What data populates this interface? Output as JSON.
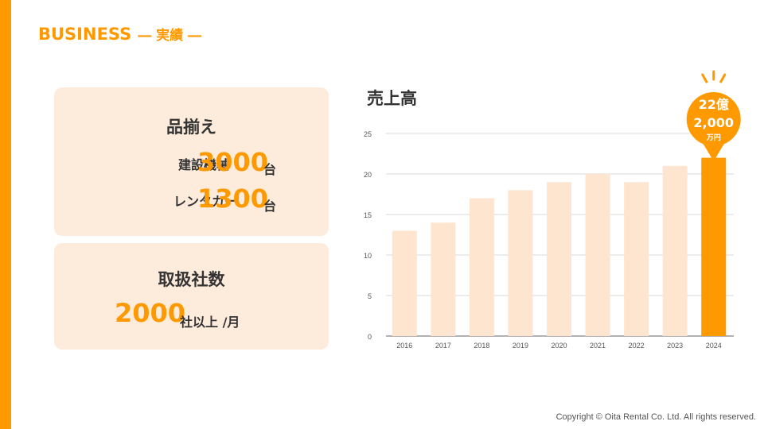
{
  "header": {
    "title": "BUSINESS",
    "subtitle": "― 実績 ―"
  },
  "lineup": {
    "title": "品揃え",
    "rows": [
      {
        "label": "建設機械",
        "value": "3000",
        "unit": "台"
      },
      {
        "label": "レンタカー",
        "value": "1300",
        "unit": "台"
      }
    ]
  },
  "clients": {
    "title": "取扱社数",
    "value": "2000",
    "unit": "社以上 /月"
  },
  "chart_title": "売上高",
  "highlight": {
    "line1": "22億",
    "line2": "2,000",
    "line3": "万円"
  },
  "copyright": "Copyright © Oita Rental Co. Ltd. All rights reserved.",
  "colors": {
    "accent": "#FF9900",
    "bar": "#FDE5CF",
    "card": "#FDEBDC"
  },
  "chart_data": {
    "type": "bar",
    "title": "売上高",
    "categories": [
      "2016",
      "2017",
      "2018",
      "2019",
      "2020",
      "2021",
      "2022",
      "2023",
      "2024"
    ],
    "values": [
      13,
      14,
      17,
      18,
      19,
      20,
      19,
      21,
      22
    ],
    "highlight_index": 8,
    "ylim": [
      0,
      25
    ],
    "yticks": [
      0,
      5,
      10,
      15,
      20,
      25
    ],
    "grid": true
  }
}
